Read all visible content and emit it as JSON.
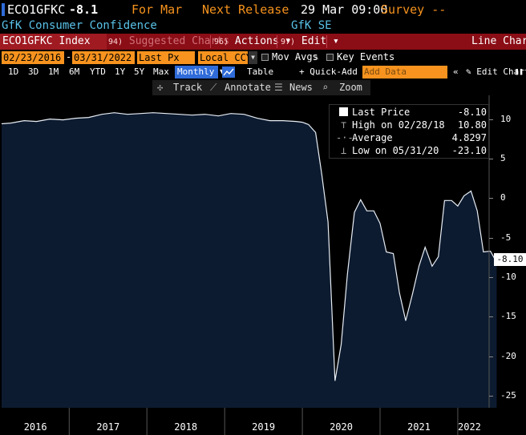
{
  "ticker": {
    "symbol": "ECO1GFKC",
    "value": "-8.1",
    "for_label": "For Mar",
    "next_release": "Next Release",
    "release_time": "29 Mar 09:00",
    "survey": "Survey --"
  },
  "subline": {
    "name": "GfK Consumer Confidence",
    "source": "GfK SE"
  },
  "redbar": {
    "index": "ECO1GFKC Index",
    "suggested_num": "94)",
    "suggested": "Suggested Charts",
    "actions_num": "96)",
    "actions": "Actions ▾",
    "edit_num": "97)",
    "edit": "Edit ▾",
    "chart_type": "Line Chart"
  },
  "controls": {
    "start_date": "02/23/2016",
    "end_date": "03/31/2022",
    "field": "Last Px",
    "currency": "Local CCY",
    "mov_avgs": "Mov Avgs",
    "key_events": "Key Events"
  },
  "periods": {
    "items": [
      "1D",
      "3D",
      "1M",
      "6M",
      "YTD",
      "1Y",
      "5Y",
      "Max"
    ],
    "frequency": "Monthly ▼",
    "table": "Table",
    "quick_add": "+ Quick-Add ·",
    "add_data_placeholder": "Add Data",
    "collapse": "«",
    "edit_chart": "Edit Chart",
    "pause": "❚❚"
  },
  "toolbar": {
    "track": "Track",
    "annotate": "Annotate",
    "news": "News",
    "zoom": "Zoom"
  },
  "legend": {
    "last_price_label": "Last Price",
    "last_price_value": "-8.10",
    "high_label": "High on 02/28/18",
    "high_value": "10.80",
    "average_label": "Average",
    "average_value": "4.8297",
    "low_label": "Low on 05/31/20",
    "low_value": "-23.10"
  },
  "last_label": "-8.10",
  "colors": {
    "orange": "#f7931e",
    "cyan": "#59c2e8",
    "red_bar": "#8b0d16",
    "blue_select": "#2f6bd9",
    "fill": "#0d1b30"
  },
  "chart_data": {
    "type": "area",
    "title": "",
    "xlabel": "",
    "ylabel": "",
    "x_tick_labels": [
      "2016",
      "2017",
      "2018",
      "2019",
      "2020",
      "2021",
      "2022"
    ],
    "y_tick_labels": [
      "10",
      "5",
      "0",
      "-5",
      "-10",
      "-15",
      "-20",
      "-25"
    ],
    "y_ticks": [
      10,
      5,
      0,
      -5,
      -10,
      -15,
      -20,
      -25
    ],
    "ylim": [
      -26.5,
      13
    ],
    "xlim": [
      2016.13,
      2022.3
    ],
    "series": [
      {
        "values": [
          [
            2016.13,
            9.4
          ],
          [
            2016.25,
            9.5
          ],
          [
            2016.42,
            9.8
          ],
          [
            2016.58,
            9.7
          ],
          [
            2016.75,
            10.0
          ],
          [
            2016.92,
            9.9
          ],
          [
            2017.08,
            10.1
          ],
          [
            2017.25,
            10.2
          ],
          [
            2017.42,
            10.6
          ],
          [
            2017.58,
            10.8
          ],
          [
            2017.75,
            10.6
          ],
          [
            2017.92,
            10.7
          ],
          [
            2018.08,
            10.8
          ],
          [
            2018.25,
            10.7
          ],
          [
            2018.42,
            10.6
          ],
          [
            2018.58,
            10.5
          ],
          [
            2018.75,
            10.6
          ],
          [
            2018.92,
            10.4
          ],
          [
            2019.08,
            10.7
          ],
          [
            2019.25,
            10.6
          ],
          [
            2019.42,
            10.1
          ],
          [
            2019.58,
            9.8
          ],
          [
            2019.75,
            9.8
          ],
          [
            2019.92,
            9.7
          ],
          [
            2020.0,
            9.6
          ],
          [
            2020.08,
            9.3
          ],
          [
            2020.17,
            8.3
          ],
          [
            2020.25,
            3.0
          ],
          [
            2020.33,
            -3.0
          ],
          [
            2020.42,
            -23.1
          ],
          [
            2020.5,
            -18.5
          ],
          [
            2020.58,
            -9.6
          ],
          [
            2020.67,
            -1.8
          ],
          [
            2020.75,
            -0.2
          ],
          [
            2020.83,
            -1.6
          ],
          [
            2020.92,
            -1.6
          ],
          [
            2021.0,
            -3.2
          ],
          [
            2021.08,
            -6.8
          ],
          [
            2021.17,
            -7.0
          ],
          [
            2021.25,
            -12.0
          ],
          [
            2021.33,
            -15.5
          ],
          [
            2021.42,
            -12.0
          ],
          [
            2021.5,
            -8.6
          ],
          [
            2021.58,
            -6.2
          ],
          [
            2021.67,
            -8.6
          ],
          [
            2021.75,
            -7.4
          ],
          [
            2021.83,
            -0.3
          ],
          [
            2021.92,
            -0.3
          ],
          [
            2022.0,
            -1.0
          ],
          [
            2022.08,
            0.3
          ],
          [
            2022.17,
            0.9
          ],
          [
            2022.25,
            -1.6
          ],
          [
            2022.33,
            -6.8
          ],
          [
            2022.42,
            -6.7
          ],
          [
            2022.5,
            -8.1
          ]
        ]
      }
    ]
  }
}
